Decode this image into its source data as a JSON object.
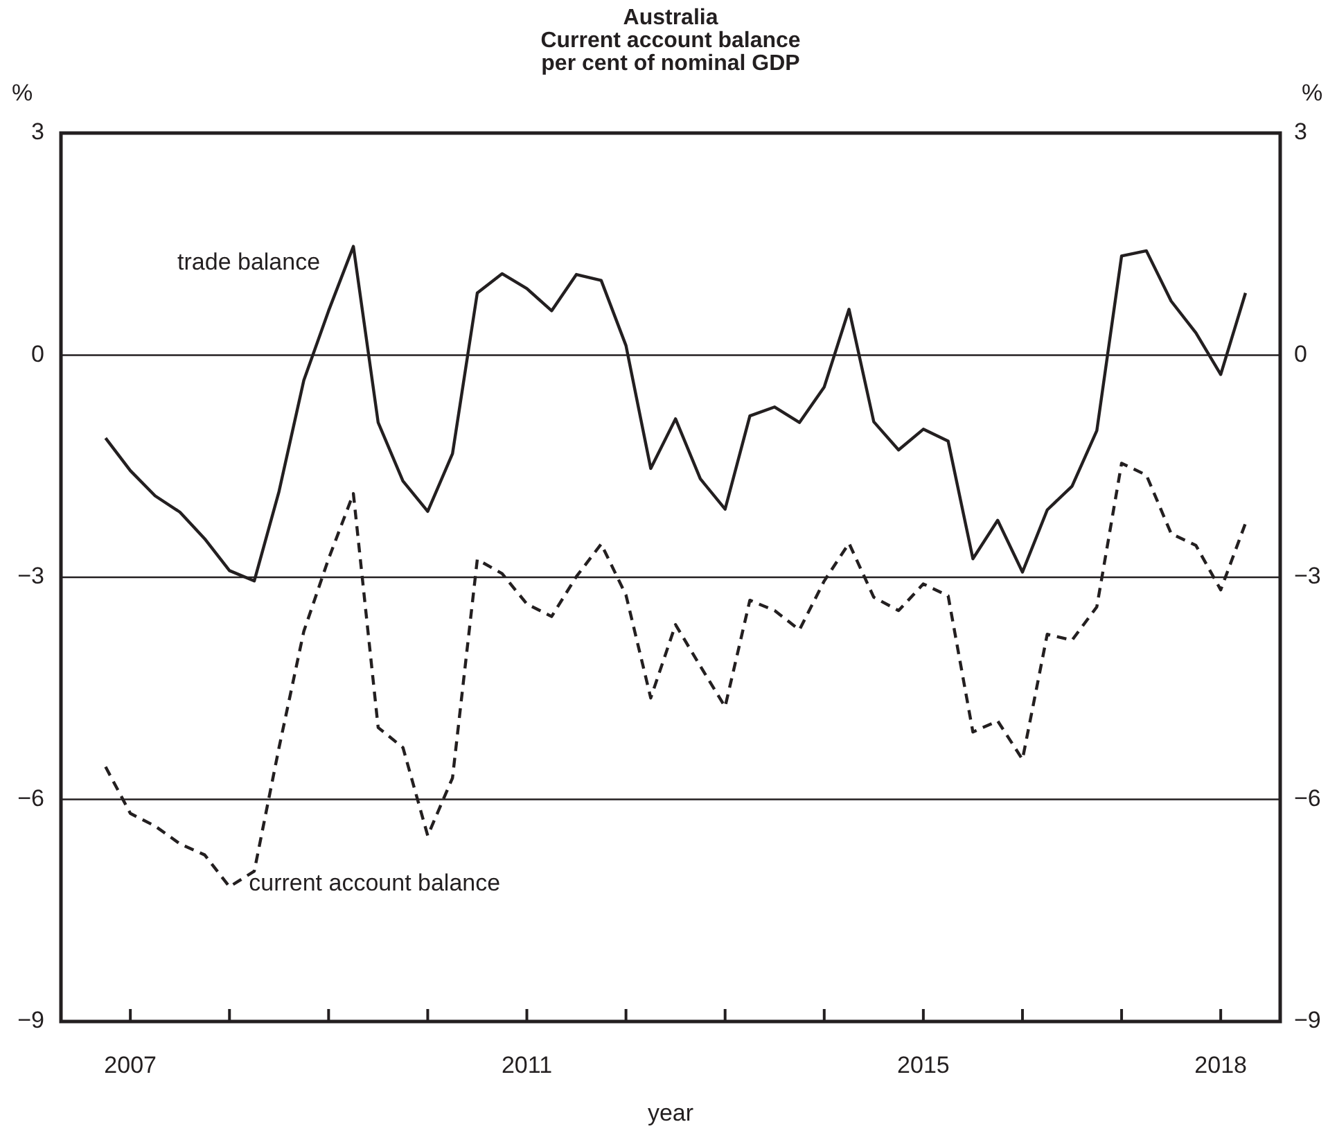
{
  "chart_data": {
    "type": "line",
    "title": "Australia\nCurrent account balance\nper cent of nominal GDP",
    "xlabel": "year",
    "ylabel": "%",
    "y2label": "%",
    "x": [
      2006.75,
      2007,
      2007.25,
      2007.5,
      2007.75,
      2008,
      2008.25,
      2008.5,
      2008.75,
      2009,
      2009.25,
      2009.5,
      2009.75,
      2010,
      2010.25,
      2010.5,
      2010.75,
      2011,
      2011.25,
      2011.5,
      2011.75,
      2012,
      2012.25,
      2012.5,
      2012.75,
      2013,
      2013.25,
      2013.5,
      2013.75,
      2014,
      2014.25,
      2014.5,
      2014.75,
      2015,
      2015.25,
      2015.5,
      2015.75,
      2016,
      2016.25,
      2016.5,
      2016.75,
      2017,
      2017.25,
      2017.5,
      2017.75,
      2018,
      2018.25
    ],
    "series": [
      {
        "name": "trade balance",
        "color": "#231f20",
        "line_style": "solid",
        "values": [
          -1.12,
          -1.56,
          -1.9,
          -2.12,
          -2.48,
          -2.91,
          -3.05,
          -1.84,
          -0.34,
          0.6,
          1.47,
          -0.91,
          -1.7,
          -2.11,
          -1.33,
          0.84,
          1.1,
          0.9,
          0.6,
          1.09,
          1.01,
          0.13,
          -1.53,
          -0.86,
          -1.67,
          -2.08,
          -0.82,
          -0.7,
          -0.91,
          -0.43,
          0.62,
          -0.9,
          -1.28,
          -1.0,
          -1.16,
          -2.75,
          -2.23,
          -2.93,
          -2.09,
          -1.77,
          -1.02,
          1.34,
          1.41,
          0.73,
          0.3,
          -0.26,
          0.84
        ]
      },
      {
        "name": "current account balance",
        "color": "#231f20",
        "line_style": "dashed",
        "values": [
          -5.56,
          -6.19,
          -6.36,
          -6.6,
          -6.75,
          -7.18,
          -6.97,
          -5.3,
          -3.73,
          -2.75,
          -1.87,
          -5.03,
          -5.3,
          -6.49,
          -5.71,
          -2.76,
          -2.95,
          -3.36,
          -3.53,
          -2.99,
          -2.55,
          -3.24,
          -4.63,
          -3.64,
          -4.2,
          -4.75,
          -3.31,
          -3.45,
          -3.71,
          -3.05,
          -2.54,
          -3.27,
          -3.45,
          -3.09,
          -3.25,
          -5.09,
          -4.94,
          -5.46,
          -3.77,
          -3.85,
          -3.4,
          -1.46,
          -1.62,
          -2.41,
          -2.57,
          -3.17,
          -2.27
        ]
      }
    ],
    "xlim": [
      2006.3,
      2018.6
    ],
    "xticks": [
      {
        "value": 2007,
        "label": "2007"
      },
      {
        "value": 2008,
        "label": null
      },
      {
        "value": 2009,
        "label": null
      },
      {
        "value": 2010,
        "label": null
      },
      {
        "value": 2011,
        "label": "2011"
      },
      {
        "value": 2012,
        "label": null
      },
      {
        "value": 2013,
        "label": null
      },
      {
        "value": 2014,
        "label": null
      },
      {
        "value": 2015,
        "label": "2015"
      },
      {
        "value": 2016,
        "label": null
      },
      {
        "value": 2017,
        "label": null
      },
      {
        "value": 2018,
        "label": "2018"
      }
    ],
    "ylim": [
      -9,
      3
    ],
    "yticks": [
      {
        "value": -9,
        "label": "−9"
      },
      {
        "value": -6,
        "label": "−6"
      },
      {
        "value": -3,
        "label": "−3"
      },
      0,
      3
    ],
    "y2lim": [
      -9,
      3
    ],
    "y2ticks": [
      {
        "value": -9,
        "label": "−9"
      },
      {
        "value": -6,
        "label": "−6"
      },
      {
        "value": -3,
        "label": "−3"
      },
      0,
      3
    ],
    "grid": "y",
    "legend": false,
    "marker": "none"
  }
}
